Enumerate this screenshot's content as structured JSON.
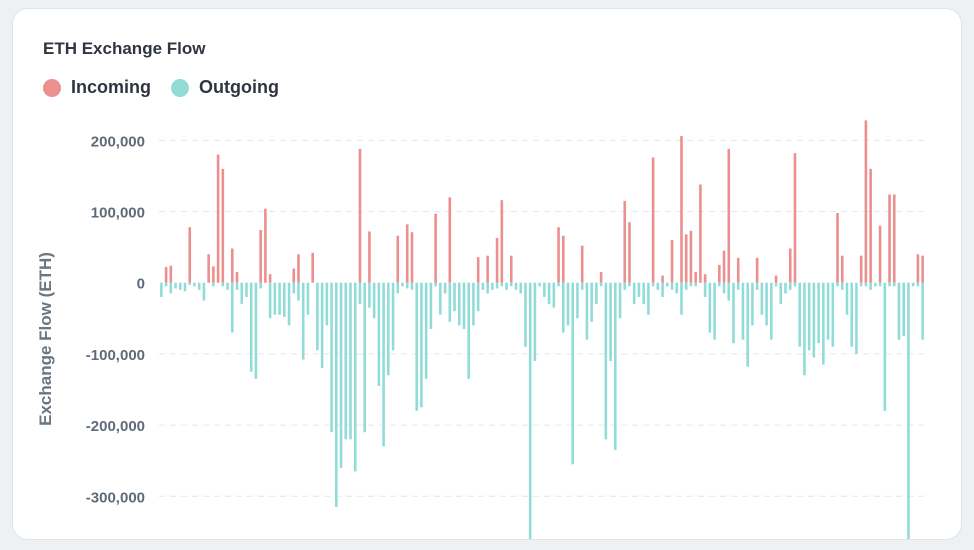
{
  "chart_data": {
    "type": "bar",
    "title": "ETH Exchange Flow",
    "ylabel": "Exchange Flow (ETH)",
    "xlabel": "",
    "ylim": [
      -360000,
      230000
    ],
    "yticks": [
      200000,
      100000,
      0,
      -100000,
      -200000,
      -300000
    ],
    "ytick_labels": [
      "200,000",
      "100,000",
      "0",
      "-100,000",
      "-200,000",
      "-300,000"
    ],
    "grid": true,
    "legend_position": "top-left",
    "series": [
      {
        "name": "Incoming",
        "color": "#ec8f8f",
        "values": [
          22000,
          24000,
          0,
          0,
          0,
          0,
          0,
          78000,
          0,
          0,
          40000,
          23000,
          180000,
          160000,
          0,
          48000,
          0,
          15000,
          0,
          0,
          0,
          0,
          0,
          74000,
          104000,
          12000,
          0,
          0,
          0,
          0,
          0,
          0,
          20000,
          40000,
          0,
          0,
          0,
          42000,
          0,
          0,
          0,
          0,
          0,
          0,
          0,
          0,
          0,
          188000,
          0,
          72000,
          0,
          0,
          0,
          0,
          0,
          0,
          66000,
          0,
          82000,
          71000,
          0,
          0,
          0,
          0,
          0,
          97000,
          0,
          0,
          0,
          120000,
          0,
          0,
          0,
          0,
          0,
          0,
          0,
          0,
          36000,
          0,
          38000,
          0,
          0,
          63000,
          116000,
          0,
          0,
          38000,
          0,
          0,
          0,
          0,
          0,
          0,
          0,
          0,
          0,
          0,
          0,
          0,
          0,
          0,
          0,
          0,
          0,
          0,
          0,
          0,
          0,
          0,
          0,
          0,
          0,
          0,
          0,
          0,
          0,
          0,
          0,
          0,
          0,
          0,
          0,
          0,
          0,
          0,
          0,
          0,
          0,
          0,
          78000,
          0,
          0,
          0,
          0,
          0,
          0,
          0,
          0,
          0,
          0,
          0,
          0,
          0,
          0,
          0,
          0,
          0,
          0,
          0,
          0,
          0,
          0,
          0,
          0,
          0,
          0,
          0,
          0,
          0,
          0,
          0,
          0,
          0,
          0,
          0,
          0,
          0,
          0,
          0,
          0,
          0,
          0,
          0,
          0,
          0,
          0,
          0,
          0,
          0,
          0,
          0,
          0,
          0,
          0,
          0,
          0,
          0,
          0,
          0,
          0,
          0,
          0,
          0,
          0,
          0,
          0,
          0,
          0,
          0,
          0,
          0,
          0,
          0,
          0,
          0,
          0,
          0,
          0,
          0,
          0,
          0,
          0,
          0,
          0,
          0,
          0,
          0,
          0,
          0,
          0,
          0,
          0,
          0,
          0,
          0,
          0,
          0,
          0,
          0,
          0,
          0
        ]
      },
      {
        "name": "Outgoing",
        "color": "#92dcd8",
        "values": []
      }
    ]
  },
  "legend": {
    "incoming_label": "Incoming",
    "outgoing_label": "Outgoing"
  }
}
